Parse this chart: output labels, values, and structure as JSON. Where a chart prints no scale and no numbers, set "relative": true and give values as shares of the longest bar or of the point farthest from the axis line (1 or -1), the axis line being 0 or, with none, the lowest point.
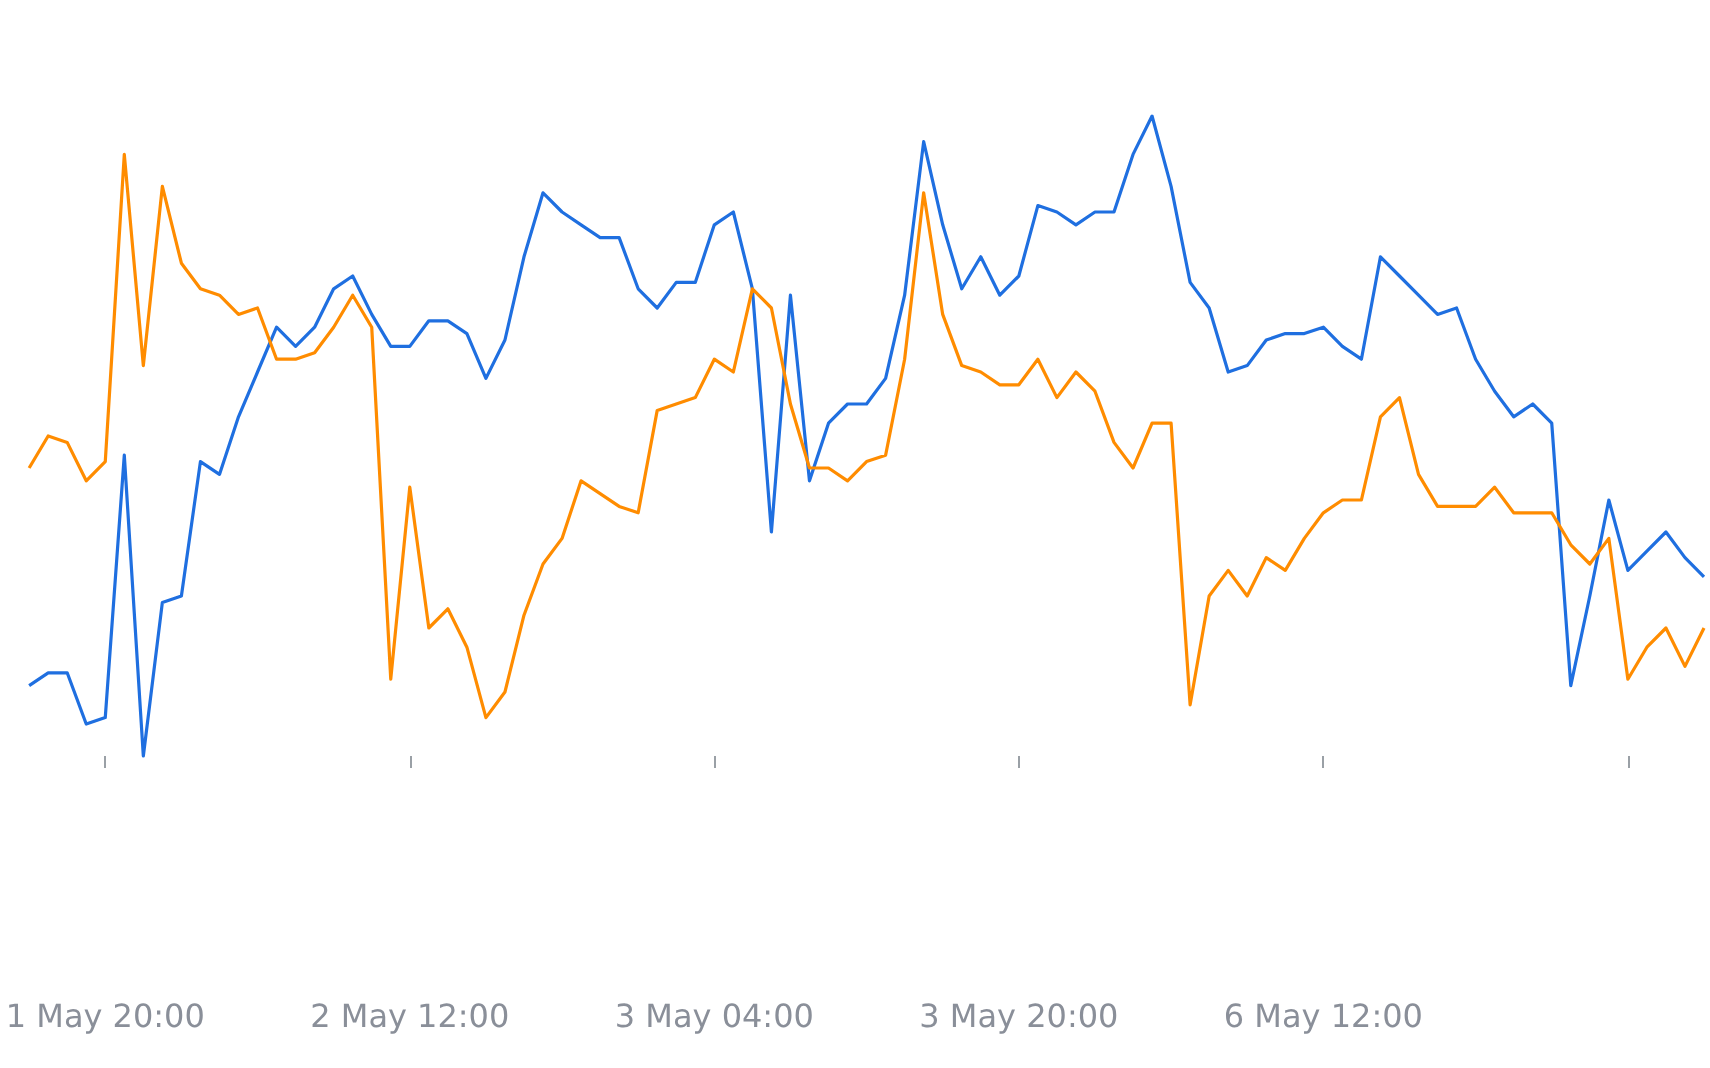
{
  "chart_data": {
    "type": "line",
    "relative": true,
    "categories": [
      null,
      null,
      null,
      null,
      "1 May 20:00",
      null,
      null,
      null,
      null,
      null,
      null,
      null,
      null,
      null,
      null,
      null,
      null,
      null,
      null,
      null,
      "2 May 12:00",
      null,
      null,
      null,
      null,
      null,
      null,
      null,
      null,
      null,
      null,
      null,
      null,
      null,
      null,
      null,
      "3 May 04:00",
      null,
      null,
      null,
      null,
      null,
      null,
      null,
      null,
      null,
      null,
      null,
      null,
      null,
      null,
      null,
      "3 May 20:00",
      null,
      null,
      null,
      null,
      null,
      null,
      null,
      null,
      null,
      null,
      null,
      null,
      null,
      null,
      null,
      "6 May 12:00",
      null,
      null,
      null,
      null,
      null,
      null,
      null,
      null,
      null,
      null,
      null,
      null,
      null,
      null,
      null,
      null,
      null,
      null,
      null,
      null
    ],
    "series": [
      {
        "color": "#1f6fe0",
        "values": [
          0.11,
          0.13,
          0.13,
          0.05,
          0.06,
          0.47,
          0,
          0.24,
          0.25,
          0.46,
          0.44,
          0.53,
          0.6,
          0.67,
          0.64,
          0.67,
          0.73,
          0.75,
          0.69,
          0.64,
          0.64,
          0.68,
          0.68,
          0.66,
          0.59,
          0.65,
          0.78,
          0.88,
          0.85,
          0.83,
          0.81,
          0.81,
          0.73,
          0.7,
          0.74,
          0.74,
          0.83,
          0.85,
          0.73,
          0.35,
          0.72,
          0.43,
          0.52,
          0.55,
          0.55,
          0.59,
          0.72,
          0.96,
          0.83,
          0.73,
          0.78,
          0.72,
          0.75,
          0.86,
          0.85,
          0.83,
          0.85,
          0.85,
          0.94,
          1,
          0.89,
          0.74,
          0.7,
          0.6,
          0.61,
          0.65,
          0.66,
          0.66,
          0.67,
          0.64,
          0.62,
          0.78,
          0.75,
          0.72,
          0.69,
          0.7,
          0.62,
          0.57,
          0.53,
          0.55,
          0.52,
          0.11,
          0.25,
          0.4,
          0.29,
          0.32,
          0.35,
          0.31,
          0.28
        ]
      },
      {
        "color": "#ff8c00",
        "values": [
          0.45,
          0.5,
          0.49,
          0.43,
          0.46,
          0.94,
          0.61,
          0.89,
          0.77,
          0.73,
          0.72,
          0.69,
          0.7,
          0.62,
          0.62,
          0.63,
          0.67,
          0.72,
          0.67,
          0.12,
          0.42,
          0.2,
          0.23,
          0.17,
          0.06,
          0.1,
          0.22,
          0.3,
          0.34,
          0.43,
          0.41,
          0.39,
          0.38,
          0.54,
          0.55,
          0.56,
          0.62,
          0.6,
          0.73,
          0.7,
          0.55,
          0.45,
          0.45,
          0.43,
          0.46,
          0.47,
          0.62,
          0.88,
          0.69,
          0.61,
          0.6,
          0.58,
          0.58,
          0.62,
          0.56,
          0.6,
          0.57,
          0.49,
          0.45,
          0.52,
          0.52,
          0.08,
          0.25,
          0.29,
          0.25,
          0.31,
          0.29,
          0.34,
          0.38,
          0.4,
          0.4,
          0.53,
          0.56,
          0.44,
          0.39,
          0.39,
          0.39,
          0.42,
          0.38,
          0.38,
          0.38,
          0.33,
          0.3,
          0.34,
          0.12,
          0.17,
          0.2,
          0.14,
          0.2
        ]
      }
    ]
  }
}
